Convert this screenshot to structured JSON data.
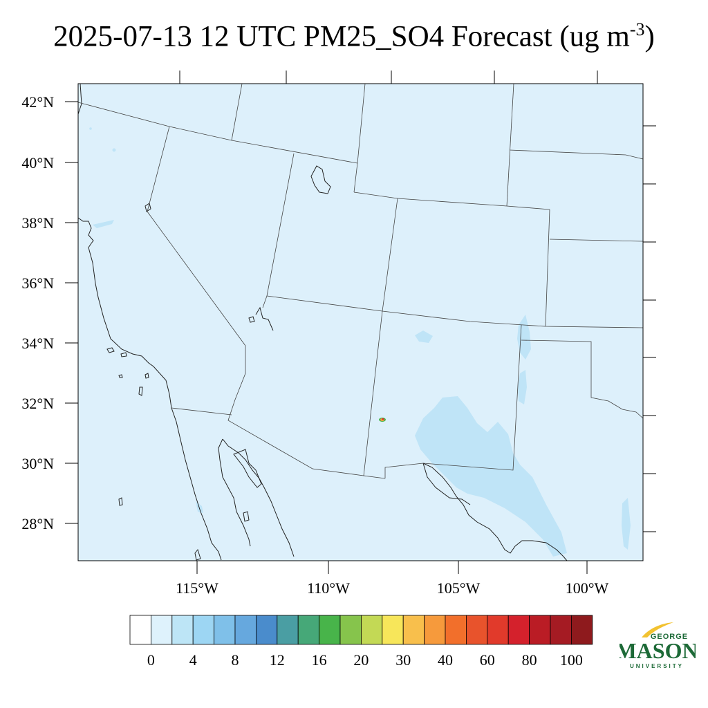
{
  "title": {
    "main": "2025-07-13 12 UTC PM25_SO4 Forecast (ug m",
    "sup": "-3",
    "close": ")"
  },
  "map": {
    "lat_labels": [
      "42°N",
      "40°N",
      "38°N",
      "36°N",
      "34°N",
      "32°N",
      "30°N",
      "28°N"
    ],
    "lon_labels": [
      "115°W",
      "110°W",
      "105°W",
      "100°W"
    ],
    "background_color": "#ddf0fb",
    "concentration_color": "#bfe4f7"
  },
  "colorbar": {
    "colors": [
      "#ffffff",
      "#def2fc",
      "#bde5f6",
      "#9dd6f3",
      "#7fc0e9",
      "#66a8de",
      "#4a8ccc",
      "#4a9ea3",
      "#46a878",
      "#48b44a",
      "#86c44c",
      "#c3d955",
      "#f7e65a",
      "#f8bf4c",
      "#f69a3c",
      "#f26f2b",
      "#e8532c",
      "#e13a2b",
      "#d4212c",
      "#ba1c25",
      "#a51b23",
      "#8e1a1d"
    ],
    "labels": [
      "0",
      "4",
      "8",
      "12",
      "16",
      "20",
      "30",
      "40",
      "60",
      "80",
      "100"
    ]
  },
  "logo": {
    "line1": "GEORGE",
    "line2": "MASON",
    "line3": "UNIVERSITY"
  }
}
